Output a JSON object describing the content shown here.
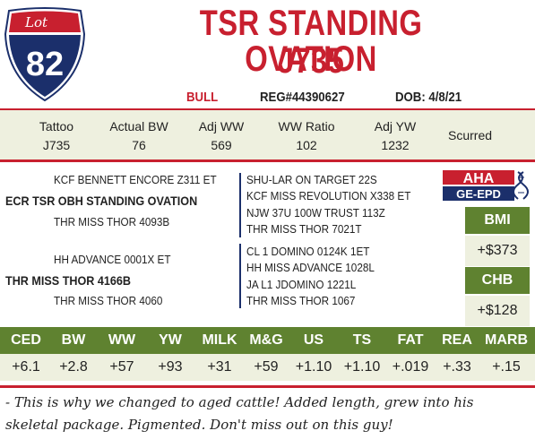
{
  "lot": {
    "label": "Lot",
    "number": "82"
  },
  "title": {
    "line1": "TSR STANDING OVATION",
    "line2": "J735"
  },
  "info": {
    "sex": "BULL",
    "reg": "REG#44390627",
    "dob": "DOB: 4/8/21"
  },
  "performance": [
    {
      "label": "Tattoo",
      "value": "J735"
    },
    {
      "label": "Actual BW",
      "value": "76"
    },
    {
      "label": "Adj WW",
      "value": "569"
    },
    {
      "label": "WW Ratio",
      "value": "102"
    },
    {
      "label": "Adj YW",
      "value": "1232"
    }
  ],
  "status": "Scurred",
  "pedigree": {
    "sire": "ECR TSR OBH STANDING OVATION",
    "sire_sire": "KCF BENNETT ENCORE Z311 ET",
    "sire_dam": "THR MISS THOR 4093B",
    "sire_sire_sire": "SHU-LAR ON TARGET 22S",
    "sire_sire_dam": "KCF MISS REVOLUTION X338 ET",
    "sire_dam_sire": "NJW 37U 100W TRUST 113Z",
    "sire_dam_dam": "THR MISS THOR 7021T",
    "dam": "THR MISS THOR 4166B",
    "dam_sire": "HH ADVANCE 0001X ET",
    "dam_dam": "THR MISS THOR 4060",
    "dam_sire_sire": "CL 1 DOMINO 0124K 1ET",
    "dam_sire_dam": "HH MISS ADVANCE 1028L",
    "dam_dam_sire": "JA L1 JDOMINO 1221L",
    "dam_dam_dam": "THR MISS THOR 1067"
  },
  "logo": {
    "line1": "AHA",
    "line2": "GE-EPD"
  },
  "indexes": [
    {
      "label": "BMI",
      "value": "+$373"
    },
    {
      "label": "CHB",
      "value": "+$128"
    }
  ],
  "epds": [
    {
      "label": "CED",
      "value": "+6.1"
    },
    {
      "label": "BW",
      "value": "+2.8"
    },
    {
      "label": "WW",
      "value": "+57"
    },
    {
      "label": "YW",
      "value": "+93"
    },
    {
      "label": "MILK",
      "value": "+31"
    },
    {
      "label": "M&G",
      "value": "+59"
    },
    {
      "label": "US",
      "value": "+1.10"
    },
    {
      "label": "TS",
      "value": "+1.10"
    },
    {
      "label": "FAT",
      "value": "+.019"
    },
    {
      "label": "REA",
      "value": "+.33"
    },
    {
      "label": "MARB",
      "value": "+.15"
    }
  ],
  "comments": "- This is why we changed to aged cattle!  Added length, grew into his skeletal package.  Pigmented. Don't miss out on this guy!",
  "colors": {
    "red": "#c8202f",
    "navy": "#1b2f6b",
    "green": "#5f8230",
    "cream": "#eef0df"
  }
}
